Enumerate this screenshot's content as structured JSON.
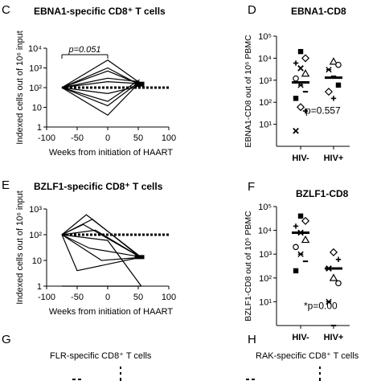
{
  "panels": {
    "C": {
      "letter": "C",
      "title": "EBNA1-specific CD8⁺ T cells"
    },
    "D": {
      "letter": "D",
      "title": "EBNA1-CD8"
    },
    "E": {
      "letter": "E",
      "title": "BZLF1-specific CD8⁺ T cells"
    },
    "F": {
      "letter": "F",
      "title": "BZLF1-CD8"
    },
    "G": {
      "letter": "G",
      "title": "FLR-specific CD8⁺ T cells"
    },
    "H": {
      "letter": "H",
      "title": "RAK-specific CD8⁺ T cells"
    }
  },
  "chart_data": [
    {
      "id": "C",
      "type": "line",
      "title": "EBNA1-specific CD8⁺ T cells",
      "xlabel": "Weeks from initiation of HAART",
      "ylabel": "Indexed cells out of 10⁶ input",
      "xlim": [
        -100,
        100
      ],
      "ylim": [
        1,
        10000
      ],
      "yscale": "log",
      "x_ticks": [
        "-100",
        "-50",
        "0",
        "50",
        "100"
      ],
      "y_ticks": [
        "1",
        "10",
        "10²",
        "10³",
        "10⁴"
      ],
      "reference_line": {
        "y": 100,
        "style": "dotted"
      },
      "annotation": {
        "text": "p=0.051",
        "from_x": -75,
        "to_x": 0
      },
      "series": [
        {
          "x": [
            -75,
            0,
            52
          ],
          "y": [
            100,
            700,
            150
          ]
        },
        {
          "x": [
            -75,
            0,
            52
          ],
          "y": [
            100,
            2500,
            180
          ]
        },
        {
          "x": [
            -75,
            0,
            52
          ],
          "y": [
            100,
            300,
            200
          ]
        },
        {
          "x": [
            -75,
            0,
            52
          ],
          "y": [
            100,
            20,
            250
          ]
        },
        {
          "x": [
            -75,
            0,
            52
          ],
          "y": [
            100,
            12,
            200
          ]
        },
        {
          "x": [
            -75,
            0,
            52
          ],
          "y": [
            100,
            4,
            180
          ]
        },
        {
          "x": [
            -75,
            0,
            52
          ],
          "y": [
            100,
            200,
            160
          ]
        },
        {
          "x": [
            -75,
            0,
            52
          ],
          "y": [
            100,
            1000,
            140
          ]
        },
        {
          "x": [
            -75,
            0,
            52
          ],
          "y": [
            100,
            50,
            120
          ]
        }
      ]
    },
    {
      "id": "D",
      "type": "scatter",
      "title": "EBNA1-CD8",
      "ylabel": "EBNA1-CD8 out of 10⁶ PBMC",
      "categories": [
        "HIV-",
        "HIV+"
      ],
      "ylim": [
        1,
        100000
      ],
      "yscale": "log",
      "y_ticks": [
        "10¹",
        "10²",
        "10³",
        "10⁴",
        "10⁵"
      ],
      "annotation": "p=0.557",
      "medians": [
        800,
        1300
      ],
      "points": [
        {
          "group": "HIV-",
          "y": 20000
        },
        {
          "group": "HIV-",
          "y": 10000
        },
        {
          "group": "HIV-",
          "y": 6000
        },
        {
          "group": "HIV-",
          "y": 3500
        },
        {
          "group": "HIV-",
          "y": 2000
        },
        {
          "group": "HIV-",
          "y": 1200
        },
        {
          "group": "HIV-",
          "y": 600
        },
        {
          "group": "HIV-",
          "y": 300
        },
        {
          "group": "HIV-",
          "y": 150
        },
        {
          "group": "HIV-",
          "y": 60
        },
        {
          "group": "HIV-",
          "y": 40
        },
        {
          "group": "HIV-",
          "y": 5
        },
        {
          "group": "HIV+",
          "y": 7000
        },
        {
          "group": "HIV+",
          "y": 5000
        },
        {
          "group": "HIV+",
          "y": 3000
        },
        {
          "group": "HIV+",
          "y": 1500
        },
        {
          "group": "HIV+",
          "y": 600
        },
        {
          "group": "HIV+",
          "y": 300
        },
        {
          "group": "HIV+",
          "y": 150
        }
      ]
    },
    {
      "id": "E",
      "type": "line",
      "title": "BZLF1-specific CD8⁺ T cells",
      "xlabel": "Weeks from initiation of HAART",
      "ylabel": "Indexed cells out of 10⁶ input",
      "xlim": [
        -100,
        100
      ],
      "ylim": [
        1,
        1000
      ],
      "yscale": "log",
      "x_ticks": [
        "-100",
        "-50",
        "0",
        "50",
        "100"
      ],
      "y_ticks": [
        "1",
        "10",
        "10²",
        "10³"
      ],
      "reference_line": {
        "y": 100,
        "style": "dotted"
      },
      "series": [
        {
          "x": [
            -75,
            -35,
            52
          ],
          "y": [
            100,
            600,
            15
          ]
        },
        {
          "x": [
            -75,
            -25,
            52
          ],
          "y": [
            100,
            400,
            14
          ]
        },
        {
          "x": [
            -75,
            -40,
            52
          ],
          "y": [
            100,
            250,
            14
          ]
        },
        {
          "x": [
            -75,
            -20,
            52
          ],
          "y": [
            100,
            150,
            14
          ]
        },
        {
          "x": [
            -75,
            -30,
            52
          ],
          "y": [
            100,
            30,
            14
          ]
        },
        {
          "x": [
            -75,
            -10,
            52
          ],
          "y": [
            100,
            10,
            13
          ]
        },
        {
          "x": [
            -75,
            -50,
            52
          ],
          "y": [
            100,
            4,
            13
          ]
        },
        {
          "x": [
            -75,
            0,
            55
          ],
          "y": [
            100,
            60,
            1
          ]
        },
        {
          "x": [
            -75,
            55
          ],
          "y": [
            1,
            1
          ]
        }
      ]
    },
    {
      "id": "F",
      "type": "scatter",
      "title": "BZLF1-CD8",
      "ylabel": "BZLF1-CD8 out of 10⁶ PBMC",
      "categories": [
        "HIV-",
        "HIV+"
      ],
      "ylim": [
        1,
        100000
      ],
      "yscale": "log",
      "y_ticks": [
        "10¹",
        "10²",
        "10³",
        "10⁴",
        "10⁵"
      ],
      "annotation": "*p=0.00",
      "medians": [
        8000,
        250
      ],
      "points": [
        {
          "group": "HIV-",
          "y": 40000
        },
        {
          "group": "HIV-",
          "y": 25000
        },
        {
          "group": "HIV-",
          "y": 15000
        },
        {
          "group": "HIV-",
          "y": 8000
        },
        {
          "group": "HIV-",
          "y": 4000
        },
        {
          "group": "HIV-",
          "y": 2000
        },
        {
          "group": "HIV-",
          "y": 1000
        },
        {
          "group": "HIV-",
          "y": 500
        },
        {
          "group": "HIV-",
          "y": 200
        },
        {
          "group": "HIV+",
          "y": 1200
        },
        {
          "group": "HIV+",
          "y": 600
        },
        {
          "group": "HIV+",
          "y": 250
        },
        {
          "group": "HIV+",
          "y": 100
        },
        {
          "group": "HIV+",
          "y": 60
        },
        {
          "group": "HIV+",
          "y": 10
        },
        {
          "group": "HIV+",
          "y": 1
        }
      ]
    }
  ],
  "colors": {
    "ink": "#000000",
    "background": "#ffffff"
  }
}
